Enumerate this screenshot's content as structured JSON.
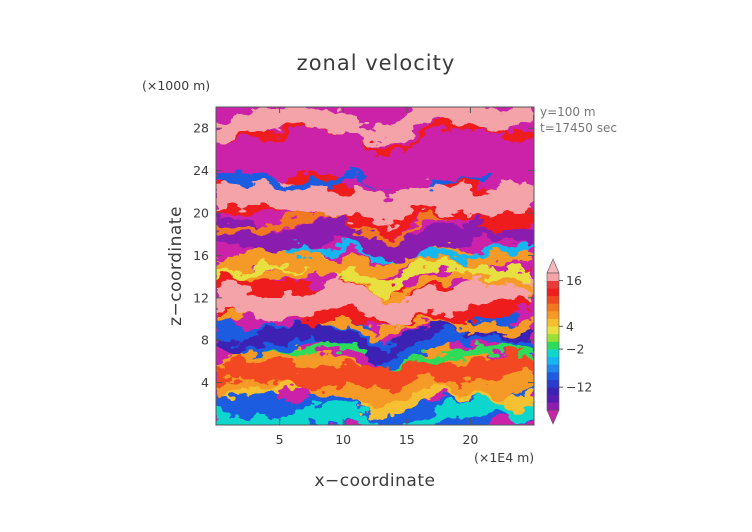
{
  "chart_data": {
    "type": "heatmap",
    "title": "zonal velocity",
    "xlabel": "x−coordinate",
    "ylabel": "z−coordinate",
    "x_unit": "(×1E4 m)",
    "y_unit": "(×1000 m)",
    "annotations": [
      "y=100 m",
      "t=17450 sec"
    ],
    "xlim": [
      0,
      25
    ],
    "ylim": [
      0,
      30
    ],
    "x_ticks": [
      5,
      10,
      15,
      20
    ],
    "y_ticks": [
      4,
      8,
      12,
      16,
      20,
      24,
      28
    ],
    "colorbar": {
      "ticks": [
        16,
        4,
        -2,
        -12
      ],
      "levels": [
        -18,
        -16,
        -14,
        -12,
        -10,
        -8,
        -6,
        -4,
        -2,
        0,
        2,
        4,
        6,
        8,
        10,
        12,
        14,
        16,
        18
      ],
      "extend": "both",
      "colors": [
        "#cc22aa",
        "#8a1fb0",
        "#5a1bb0",
        "#3a22b5",
        "#2a3ccc",
        "#1e5be0",
        "#1e88ee",
        "#18b6f0",
        "#10d6cc",
        "#2ddc5a",
        "#9be035",
        "#e8e040",
        "#f5c030",
        "#f59a25",
        "#f07820",
        "#f24a20",
        "#ee1e1e",
        "#e83c3c",
        "#f4a3a8",
        "#f7b7ba"
      ]
    },
    "bands": [
      {
        "z_range": [
          0,
          3
        ],
        "value": "-6 to 0 (blue/cyan)"
      },
      {
        "z_range": [
          3,
          7
        ],
        "value": "4 to 10 (orange/yellow)"
      },
      {
        "z_range": [
          7,
          10
        ],
        "value": "-10 to -4 (blue)"
      },
      {
        "z_range": [
          10,
          14
        ],
        "value": "12 to 18 (pink/red)"
      },
      {
        "z_range": [
          14,
          17
        ],
        "value": "0 to 10 (yellow/orange)"
      },
      {
        "z_range": [
          17,
          19
        ],
        "value": "-16 (purple)"
      },
      {
        "z_range": [
          19,
          23
        ],
        "value": "16 to 18 (pink)"
      },
      {
        "z_range": [
          23,
          28
        ],
        "value": "-18 (magenta)"
      },
      {
        "z_range": [
          28,
          30
        ],
        "value": "16 to 18 (pink)"
      }
    ]
  }
}
